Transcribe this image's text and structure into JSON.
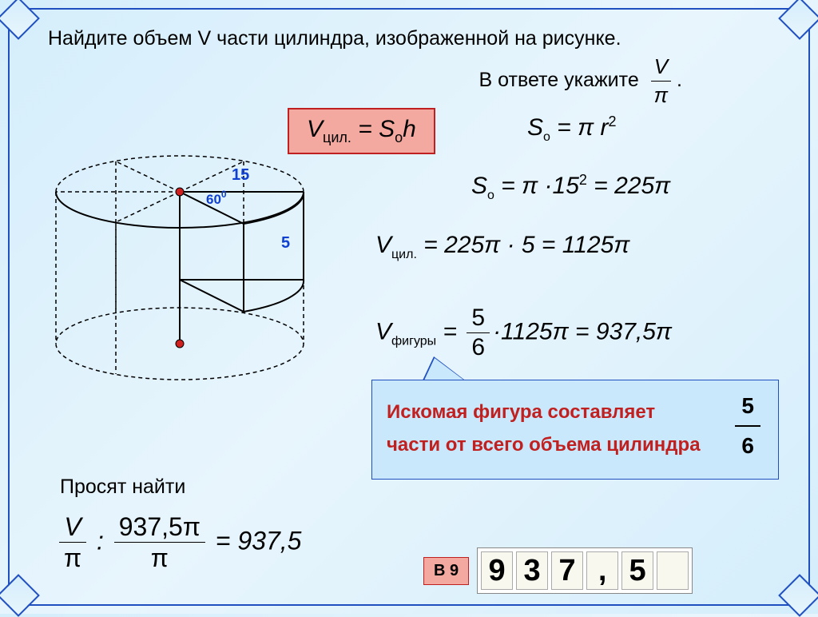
{
  "title_line1": "Найдите объем  V  части цилиндра, изображенной на рисунке.",
  "title_line2": "В ответе укажите",
  "title_frac_top": "V",
  "title_frac_bot": "π",
  "formula_main": "V",
  "formula_main_sub": "цил.",
  "formula_main_rhs": " = S",
  "formula_main_sub2": "о",
  "formula_main_end": "h",
  "eq_so": "S",
  "eq_so_sub": "о",
  "eq_so_rhs": " = π r",
  "eq_so_sup": "2",
  "eq_so2": "S",
  "eq_so2_sub": "о",
  "eq_so2_rhs": " = π ·15",
  "eq_so2_sup": "2",
  "eq_so2_end": " = 225π",
  "eq_v": "V",
  "eq_v_sub": "цил.",
  "eq_v_rhs": " = 225π · 5 = 1125π",
  "eq_vf": "V",
  "eq_vf_sub": "фигуры",
  "eq_vf_eq": " = ",
  "eq_vf_frac_top": "5",
  "eq_vf_frac_bot": "6",
  "eq_vf_end": "·1125π = 937,5π",
  "hint_line1": "Искомая фигура составляет",
  "hint_line2": "части от всего объема цилиндра",
  "hint_frac_top": "5",
  "hint_frac_bot": "6",
  "ask_label": "Просят найти",
  "ask_frac1_top": "V",
  "ask_frac1_bot": "π",
  "ask_colon": " : ",
  "ask_frac2_top": "937,5π",
  "ask_frac2_bot": "π",
  "ask_end": " = 937,5",
  "b9_label": "В 9",
  "answer_digits": [
    "9",
    "3",
    "7",
    ",",
    "5",
    " "
  ],
  "cyl": {
    "radius_label": "15",
    "angle_label": "60",
    "angle_sup": "0",
    "height_label": "5",
    "colors": {
      "line": "#000000",
      "label_blue": "#1040d0",
      "dot_fill": "#d02020",
      "dot_stroke": "#000000"
    }
  }
}
